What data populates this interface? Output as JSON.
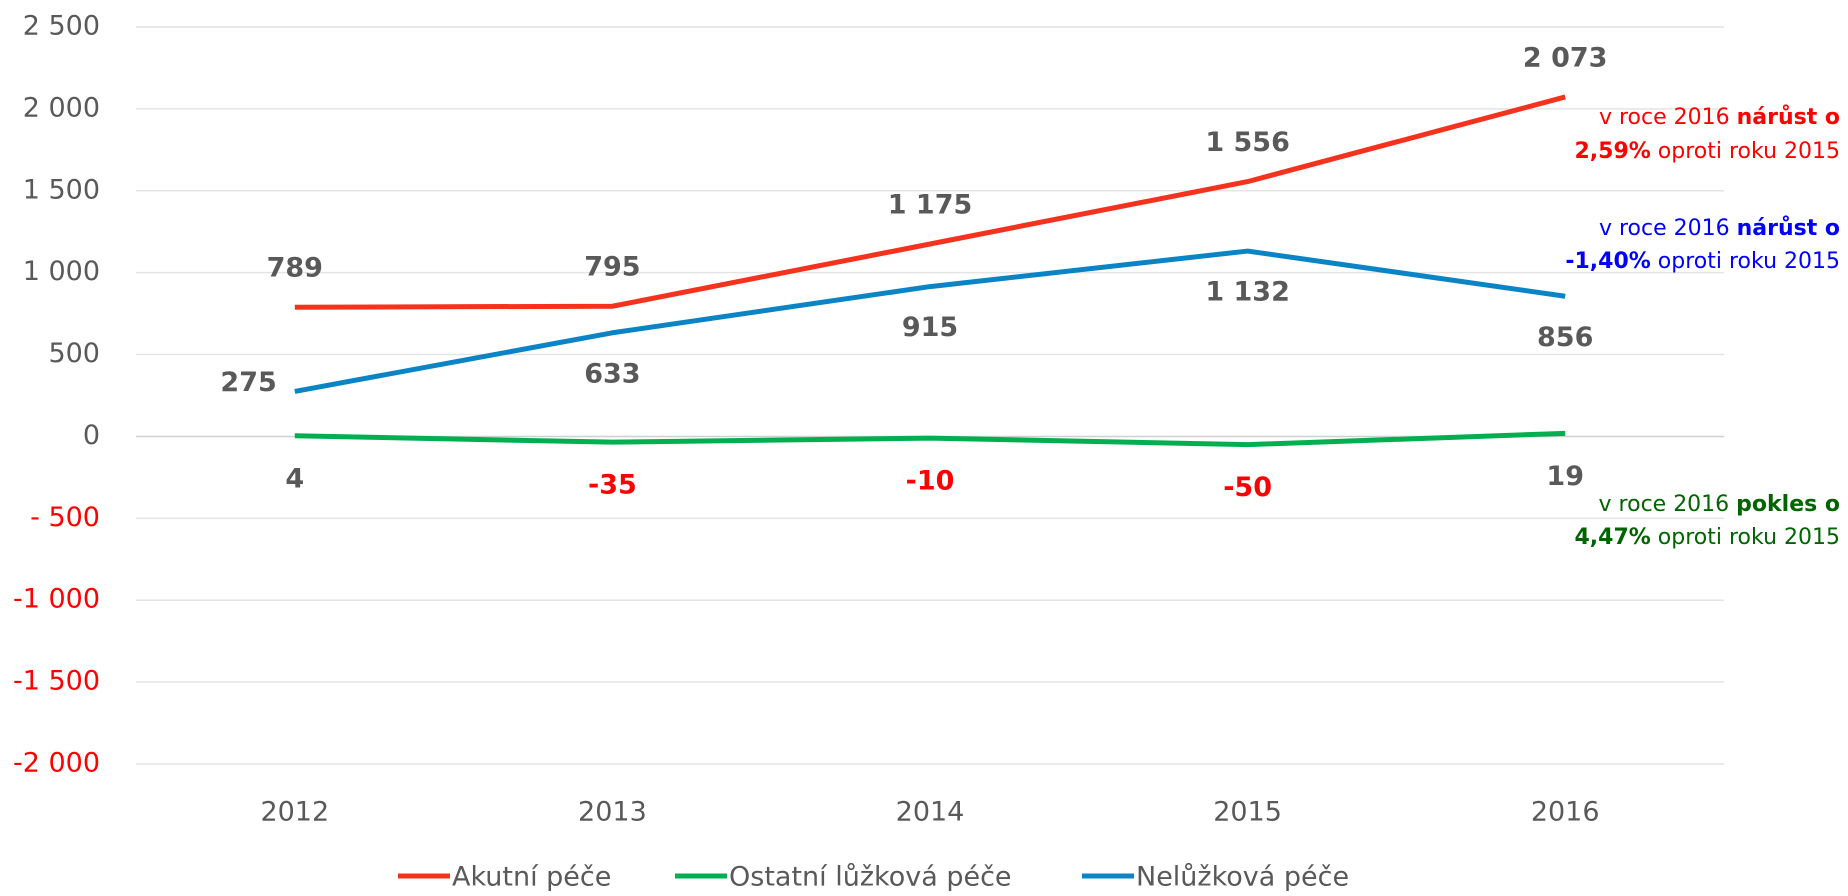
{
  "chart_data": {
    "type": "line",
    "categories": [
      "2012",
      "2013",
      "2014",
      "2015",
      "2016"
    ],
    "series": [
      {
        "name": "Akutní péče",
        "color": "#f4321e",
        "values": [
          789,
          795,
          1175,
          1556,
          2073
        ],
        "value_labels": [
          "789",
          "795",
          "1 175",
          "1 556",
          "2 073"
        ]
      },
      {
        "name": "Ostatní lůžková péče",
        "color": "#00b050",
        "values": [
          4,
          -35,
          -10,
          -50,
          19
        ]
      },
      {
        "name": "Nelůžková péče",
        "color": "#0b84c6",
        "values": [
          275,
          633,
          915,
          1132,
          856
        ],
        "value_labels": [
          "275",
          "633",
          "915",
          "1 132",
          "856"
        ]
      }
    ],
    "ylim": [
      -2000,
      2500
    ],
    "yticks": [
      {
        "value": -2000,
        "label": "-2 000"
      },
      {
        "value": -1500,
        "label": "-1 500"
      },
      {
        "value": -1000,
        "label": "-1 000"
      },
      {
        "value": -500,
        "label": "- 500"
      },
      0,
      500,
      {
        "value": 1000,
        "label": "1 000"
      },
      {
        "value": 1500,
        "label": "1 500"
      },
      {
        "value": 2000,
        "label": "2 000"
      },
      {
        "value": 2500,
        "label": "2 500"
      }
    ],
    "grid": true,
    "legend": "bottom",
    "annotations": [
      {
        "color": "#ff0000",
        "lines": [
          [
            {
              "text": "v roce 2016 "
            },
            {
              "text": "nárůst o",
              "bold": true
            }
          ],
          [
            {
              "text": "2,59%",
              "bold": true
            },
            {
              "text": " oproti roku 2015"
            }
          ]
        ]
      },
      {
        "color": "#0000ff",
        "lines": [
          [
            {
              "text": "v roce 2016 "
            },
            {
              "text": "nárůst o",
              "bold": true
            }
          ],
          [
            {
              "text": "-1,40%",
              "bold": true
            },
            {
              "text": " oproti roku 2015"
            }
          ]
        ]
      },
      {
        "color": "#006400",
        "lines": [
          [
            {
              "text": "v roce 2016 "
            },
            {
              "text": "pokles o",
              "bold": true
            }
          ],
          [
            {
              "text": "4,47%",
              "bold": true
            },
            {
              "text": " oproti roku 2015"
            }
          ]
        ]
      }
    ]
  }
}
